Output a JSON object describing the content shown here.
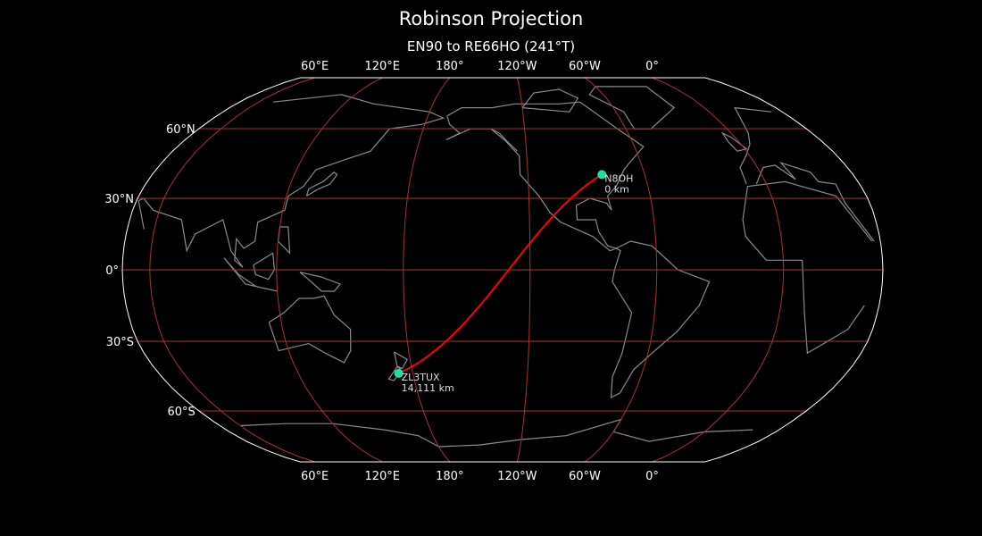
{
  "title": "Robinson Projection",
  "subtitle": "EN90 to RE66HO (241°T)",
  "map": {
    "projection": "Robinson",
    "central_longitude": -133,
    "background": "#000000",
    "outline_color": "#ffffff",
    "coastline_color": "#8a8a8a",
    "graticule_color": "#a83232",
    "path_color": "#ff0000",
    "marker_color": "#1de0a8",
    "meridians": [
      0,
      60,
      120,
      180,
      -120,
      -60
    ],
    "parallels": [
      -60,
      -30,
      0,
      30,
      60
    ],
    "top_ticks": [
      {
        "lon": 60,
        "label": "60°E"
      },
      {
        "lon": 120,
        "label": "120°E"
      },
      {
        "lon": 180,
        "label": "180°"
      },
      {
        "lon": -120,
        "label": "120°W"
      },
      {
        "lon": -60,
        "label": "60°W"
      },
      {
        "lon": 0,
        "label": "0°"
      }
    ],
    "bottom_ticks": [
      {
        "lon": 60,
        "label": "60°E"
      },
      {
        "lon": 120,
        "label": "120°E"
      },
      {
        "lon": 180,
        "label": "180°"
      },
      {
        "lon": -120,
        "label": "120°W"
      },
      {
        "lon": -60,
        "label": "60°W"
      },
      {
        "lon": 0,
        "label": "0°"
      }
    ],
    "left_ticks": [
      {
        "lat": 60,
        "label": "60°N"
      },
      {
        "lat": 30,
        "label": "30°N"
      },
      {
        "lat": 0,
        "label": "0°"
      },
      {
        "lat": -30,
        "label": "30°S"
      },
      {
        "lat": -60,
        "label": "60°S"
      }
    ],
    "stations": [
      {
        "call": "N8OH",
        "distance": "0 km",
        "lat": 40.0,
        "lon": -82.0
      },
      {
        "call": "ZL3TUX",
        "distance": "14,111 km",
        "lat": -43.5,
        "lon": 172.6
      }
    ]
  }
}
